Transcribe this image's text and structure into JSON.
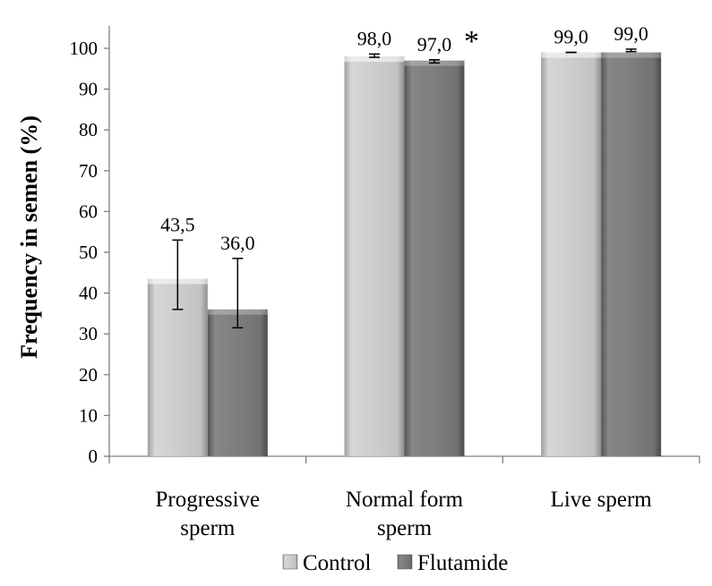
{
  "chart_data": {
    "type": "bar",
    "ylabel": "Frequency in semen (%)",
    "xlabel": "",
    "ylim": [
      0,
      100
    ],
    "yticks": [
      0,
      10,
      20,
      30,
      40,
      50,
      60,
      70,
      80,
      90,
      100
    ],
    "categories": [
      "Progressive sperm",
      "Normal form sperm",
      "Live sperm"
    ],
    "category_lines": [
      [
        "Progressive",
        "sperm"
      ],
      [
        "Normal form",
        "sperm"
      ],
      [
        "Live sperm"
      ]
    ],
    "series": [
      {
        "name": "Control",
        "color": "#c8c8c8",
        "values": [
          43.5,
          98.0,
          99.0
        ],
        "error_low": [
          36.0,
          97.8,
          99.0
        ],
        "error_high": [
          53.0,
          98.6,
          99.0
        ],
        "labels": [
          "43,5",
          "98,0",
          "99,0"
        ]
      },
      {
        "name": "Flutamide",
        "color": "#7a7a7a",
        "values": [
          36.0,
          97.0,
          99.0
        ],
        "error_low": [
          31.5,
          96.4,
          99.2
        ],
        "error_high": [
          48.5,
          97.2,
          99.8
        ],
        "labels": [
          "36,0",
          "97,0",
          "99,0"
        ]
      }
    ],
    "annotations": [
      {
        "text": "*",
        "category": 1,
        "series": 1
      }
    ],
    "legend_position": "bottom",
    "grid": false
  }
}
